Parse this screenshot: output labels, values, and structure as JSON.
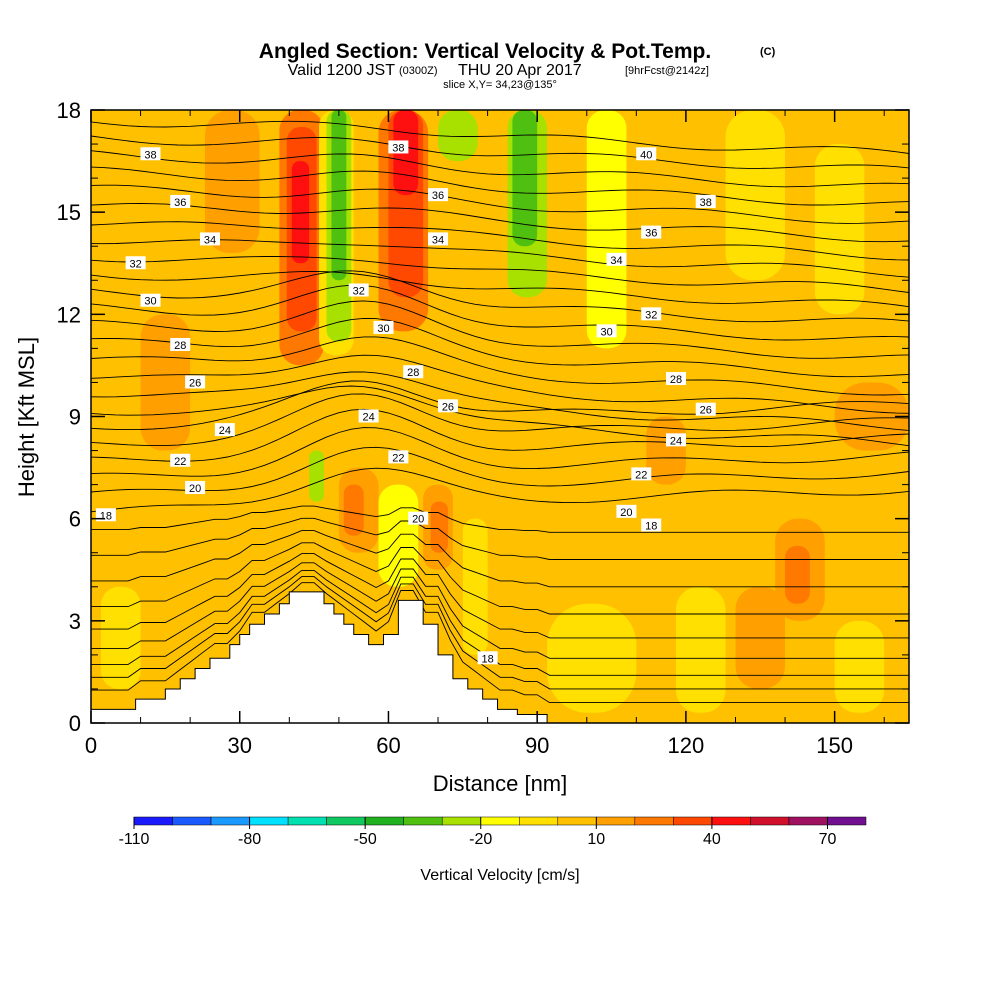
{
  "header": {
    "title": "Angled Section: Vertical Velocity & Pot.Temp.",
    "title_units": "(C)",
    "valid_prefix": "Valid 1200 JST",
    "valid_utc": "(0300Z)",
    "valid_date": "THU 20 Apr 2017",
    "forecast": "[9hrFcst@2142z]",
    "slice": "slice X,Y= 34,23@135°"
  },
  "chart_data": {
    "type": "heatmap",
    "xlabel": "Distance [nm]",
    "ylabel": "Height [Kft MSL]",
    "xlim": [
      0,
      165
    ],
    "ylim": [
      0,
      18
    ],
    "x_ticks": [
      0,
      30,
      60,
      90,
      120,
      150
    ],
    "y_ticks": [
      0,
      3,
      6,
      9,
      12,
      15,
      18
    ],
    "colorbar": {
      "title": "Vertical Velocity [cm/s]",
      "tick_labels": [
        "-110",
        "-80",
        "-50",
        "-20",
        "10",
        "40",
        "70"
      ],
      "tick_values": [
        -110,
        -80,
        -50,
        -20,
        10,
        40,
        70
      ],
      "bins": [
        {
          "from": -110,
          "to": -100,
          "color": "#1a1aff"
        },
        {
          "from": -100,
          "to": -90,
          "color": "#1a5aff"
        },
        {
          "from": -90,
          "to": -80,
          "color": "#1a9aff"
        },
        {
          "from": -80,
          "to": -70,
          "color": "#00e0ff"
        },
        {
          "from": -70,
          "to": -60,
          "color": "#00e0b0"
        },
        {
          "from": -60,
          "to": -50,
          "color": "#10c860"
        },
        {
          "from": -50,
          "to": -40,
          "color": "#20b020"
        },
        {
          "from": -40,
          "to": -30,
          "color": "#50c010"
        },
        {
          "from": -30,
          "to": -20,
          "color": "#a8e000"
        },
        {
          "from": -20,
          "to": -10,
          "color": "#ffff00"
        },
        {
          "from": -10,
          "to": 0,
          "color": "#ffe000"
        },
        {
          "from": 0,
          "to": 10,
          "color": "#ffc000"
        },
        {
          "from": 10,
          "to": 20,
          "color": "#ffa000"
        },
        {
          "from": 20,
          "to": 30,
          "color": "#ff7800"
        },
        {
          "from": 30,
          "to": 40,
          "color": "#ff4800"
        },
        {
          "from": 40,
          "to": 50,
          "color": "#ff1010"
        },
        {
          "from": 50,
          "to": 60,
          "color": "#d0102a"
        },
        {
          "from": 60,
          "to": 70,
          "color": "#a01060"
        },
        {
          "from": 70,
          "to": 80,
          "color": "#701090"
        }
      ]
    },
    "background_color": "#ffc000",
    "velocity_cells": [
      {
        "x0": 23,
        "x1": 34,
        "y0": 13.8,
        "y1": 18,
        "color": "#ffa000"
      },
      {
        "x0": 38,
        "x1": 47,
        "y0": 10.5,
        "y1": 18,
        "color": "#ff7800"
      },
      {
        "x0": 39.5,
        "x1": 45.5,
        "y0": 11.5,
        "y1": 17.5,
        "color": "#ff4800"
      },
      {
        "x0": 40.5,
        "x1": 44,
        "y0": 13.5,
        "y1": 16.5,
        "color": "#ff1010"
      },
      {
        "x0": 46,
        "x1": 53,
        "y0": 10.8,
        "y1": 18,
        "color": "#ffe000"
      },
      {
        "x0": 47.5,
        "x1": 52.5,
        "y0": 11.2,
        "y1": 18,
        "color": "#a8e000"
      },
      {
        "x0": 48.5,
        "x1": 51.5,
        "y0": 13,
        "y1": 18,
        "color": "#50c010"
      },
      {
        "x0": 58,
        "x1": 68,
        "y0": 11.5,
        "y1": 18,
        "color": "#ff7800"
      },
      {
        "x0": 60,
        "x1": 67,
        "y0": 12.5,
        "y1": 18,
        "color": "#ff4800"
      },
      {
        "x0": 61,
        "x1": 66,
        "y0": 15.5,
        "y1": 18,
        "color": "#ff1010"
      },
      {
        "x0": 70,
        "x1": 78,
        "y0": 16.5,
        "y1": 18,
        "color": "#a8e000"
      },
      {
        "x0": 84,
        "x1": 92,
        "y0": 12.5,
        "y1": 18,
        "color": "#a8e000"
      },
      {
        "x0": 85,
        "x1": 90,
        "y0": 14,
        "y1": 18,
        "color": "#50c010"
      },
      {
        "x0": 100,
        "x1": 108,
        "y0": 11,
        "y1": 18,
        "color": "#ffff00"
      },
      {
        "x0": 128,
        "x1": 140,
        "y0": 13,
        "y1": 18,
        "color": "#ffe000"
      },
      {
        "x0": 146,
        "x1": 156,
        "y0": 12,
        "y1": 17,
        "color": "#ffe000"
      },
      {
        "x0": 44,
        "x1": 47,
        "y0": 6.5,
        "y1": 8,
        "color": "#a8e000"
      },
      {
        "x0": 50,
        "x1": 58,
        "y0": 5,
        "y1": 7.5,
        "color": "#ffa000"
      },
      {
        "x0": 51,
        "x1": 55,
        "y0": 5.5,
        "y1": 7,
        "color": "#ff7800"
      },
      {
        "x0": 58,
        "x1": 66,
        "y0": 4,
        "y1": 7,
        "color": "#ffff00"
      },
      {
        "x0": 67,
        "x1": 73,
        "y0": 4.5,
        "y1": 7,
        "color": "#ffa000"
      },
      {
        "x0": 68.5,
        "x1": 72,
        "y0": 5,
        "y1": 6.5,
        "color": "#ff7800"
      },
      {
        "x0": 75,
        "x1": 80,
        "y0": 2,
        "y1": 6,
        "color": "#ffe000"
      },
      {
        "x0": 92,
        "x1": 110,
        "y0": 0.3,
        "y1": 3.5,
        "color": "#ffe000"
      },
      {
        "x0": 118,
        "x1": 128,
        "y0": 0.3,
        "y1": 4,
        "color": "#ffe000"
      },
      {
        "x0": 130,
        "x1": 140,
        "y0": 1,
        "y1": 4,
        "color": "#ffa000"
      },
      {
        "x0": 138,
        "x1": 148,
        "y0": 3,
        "y1": 6,
        "color": "#ffa000"
      },
      {
        "x0": 140,
        "x1": 145,
        "y0": 3.5,
        "y1": 5.2,
        "color": "#ff7800"
      },
      {
        "x0": 150,
        "x1": 160,
        "y0": 0.3,
        "y1": 3,
        "color": "#ffe000"
      },
      {
        "x0": 2,
        "x1": 10,
        "y0": 1,
        "y1": 4,
        "color": "#ffe000"
      },
      {
        "x0": 10,
        "x1": 20,
        "y0": 8,
        "y1": 12,
        "color": "#ffa000"
      },
      {
        "x0": 150,
        "x1": 165,
        "y0": 8,
        "y1": 10,
        "color": "#ffa000"
      },
      {
        "x0": 112,
        "x1": 120,
        "y0": 7,
        "y1": 9,
        "color": "#ffa000"
      }
    ],
    "terrain": [
      [
        0,
        0.4
      ],
      [
        9,
        0.4
      ],
      [
        9,
        0.7
      ],
      [
        15,
        0.7
      ],
      [
        15,
        1.0
      ],
      [
        18,
        1.0
      ],
      [
        18,
        1.3
      ],
      [
        21,
        1.3
      ],
      [
        21,
        1.6
      ],
      [
        24,
        1.6
      ],
      [
        24,
        1.9
      ],
      [
        28,
        1.9
      ],
      [
        28,
        2.3
      ],
      [
        30,
        2.3
      ],
      [
        30,
        2.6
      ],
      [
        32,
        2.6
      ],
      [
        32,
        2.9
      ],
      [
        35,
        2.9
      ],
      [
        35,
        3.2
      ],
      [
        38,
        3.2
      ],
      [
        38,
        3.5
      ],
      [
        40,
        3.5
      ],
      [
        40,
        3.85
      ],
      [
        47,
        3.85
      ],
      [
        47,
        3.5
      ],
      [
        49,
        3.5
      ],
      [
        49,
        3.2
      ],
      [
        51,
        3.2
      ],
      [
        51,
        2.9
      ],
      [
        53,
        2.9
      ],
      [
        53,
        2.6
      ],
      [
        56,
        2.6
      ],
      [
        56,
        2.3
      ],
      [
        59,
        2.3
      ],
      [
        59,
        2.6
      ],
      [
        62,
        2.6
      ],
      [
        62,
        3.6
      ],
      [
        67,
        3.6
      ],
      [
        67,
        2.9
      ],
      [
        70,
        2.9
      ],
      [
        70,
        2.0
      ],
      [
        73,
        2.0
      ],
      [
        73,
        1.3
      ],
      [
        76,
        1.3
      ],
      [
        76,
        1.0
      ],
      [
        79,
        1.0
      ],
      [
        79,
        0.7
      ],
      [
        82,
        0.7
      ],
      [
        82,
        0.4
      ],
      [
        86,
        0.4
      ],
      [
        86,
        0.25
      ],
      [
        92,
        0.25
      ],
      [
        92,
        0
      ]
    ],
    "theta_lines_y_at_left": [
      0.4,
      0.8,
      1.2,
      1.7,
      2.3,
      3.0,
      3.8,
      4.6,
      5.4,
      6.2,
      6.7,
      7.2,
      7.7,
      8.2,
      8.7,
      9.2,
      9.7,
      10.2,
      10.7,
      11.2,
      11.7,
      12.2,
      12.7,
      13.2,
      13.7,
      14.2,
      14.7,
      15.2,
      15.7,
      16.2,
      16.7,
      17.2,
      17.7
    ],
    "contour_labels": [
      {
        "text": "38",
        "x": 12,
        "y": 16.7
      },
      {
        "text": "36",
        "x": 18,
        "y": 15.3
      },
      {
        "text": "34",
        "x": 24,
        "y": 14.2
      },
      {
        "text": "32",
        "x": 9,
        "y": 13.5
      },
      {
        "text": "30",
        "x": 12,
        "y": 12.4
      },
      {
        "text": "28",
        "x": 18,
        "y": 11.1
      },
      {
        "text": "26",
        "x": 21,
        "y": 10.0
      },
      {
        "text": "24",
        "x": 27,
        "y": 8.6
      },
      {
        "text": "22",
        "x": 18,
        "y": 7.7
      },
      {
        "text": "20",
        "x": 21,
        "y": 6.9
      },
      {
        "text": "18",
        "x": 3,
        "y": 6.1
      },
      {
        "text": "38",
        "x": 62,
        "y": 16.9
      },
      {
        "text": "36",
        "x": 70,
        "y": 15.5
      },
      {
        "text": "34",
        "x": 70,
        "y": 14.2
      },
      {
        "text": "32",
        "x": 54,
        "y": 12.7
      },
      {
        "text": "30",
        "x": 59,
        "y": 11.6
      },
      {
        "text": "28",
        "x": 65,
        "y": 10.3
      },
      {
        "text": "26",
        "x": 72,
        "y": 9.3
      },
      {
        "text": "24",
        "x": 56,
        "y": 9.0
      },
      {
        "text": "22",
        "x": 62,
        "y": 7.8
      },
      {
        "text": "20",
        "x": 66,
        "y": 6.0
      },
      {
        "text": "18",
        "x": 80,
        "y": 1.9
      },
      {
        "text": "40",
        "x": 112,
        "y": 16.7
      },
      {
        "text": "38",
        "x": 124,
        "y": 15.3
      },
      {
        "text": "36",
        "x": 113,
        "y": 14.4
      },
      {
        "text": "34",
        "x": 106,
        "y": 13.6
      },
      {
        "text": "32",
        "x": 113,
        "y": 12.0
      },
      {
        "text": "30",
        "x": 104,
        "y": 11.5
      },
      {
        "text": "28",
        "x": 118,
        "y": 10.1
      },
      {
        "text": "26",
        "x": 124,
        "y": 9.2
      },
      {
        "text": "24",
        "x": 118,
        "y": 8.3
      },
      {
        "text": "22",
        "x": 111,
        "y": 7.3
      },
      {
        "text": "20",
        "x": 108,
        "y": 6.2
      },
      {
        "text": "18",
        "x": 113,
        "y": 5.8
      }
    ]
  }
}
